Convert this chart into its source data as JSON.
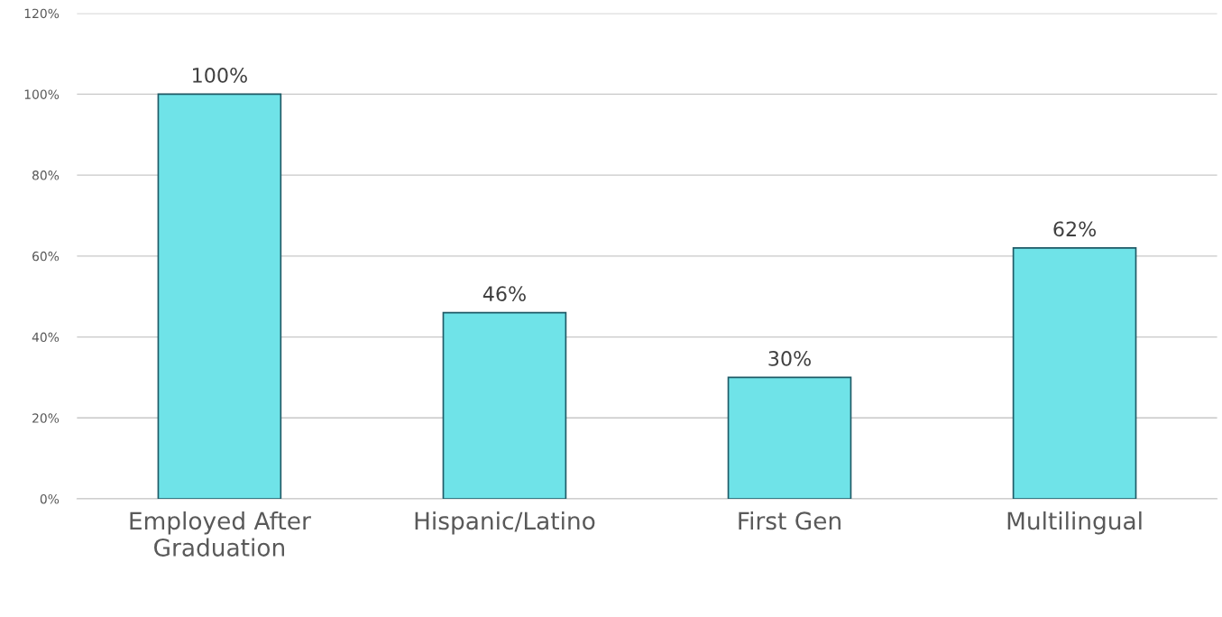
{
  "chart_data": {
    "type": "bar",
    "categories": [
      "Employed After\nGraduation",
      "Hispanic/Latino",
      "First Gen",
      "Multilingual"
    ],
    "values": [
      100,
      46,
      30,
      62
    ],
    "value_labels": [
      "100%",
      "46%",
      "30%",
      "62%"
    ],
    "color": "#6fe3e8",
    "ylim": [
      0,
      120
    ],
    "yticks": [
      {
        "value": 0,
        "label": "0%"
      },
      {
        "value": 20,
        "label": "20%"
      },
      {
        "value": 40,
        "label": "40%"
      },
      {
        "value": 60,
        "label": "60%"
      },
      {
        "value": 80,
        "label": "80%"
      },
      {
        "value": 100,
        "label": "100%"
      },
      {
        "value": 120,
        "label": "120%"
      }
    ],
    "grid": "y"
  }
}
